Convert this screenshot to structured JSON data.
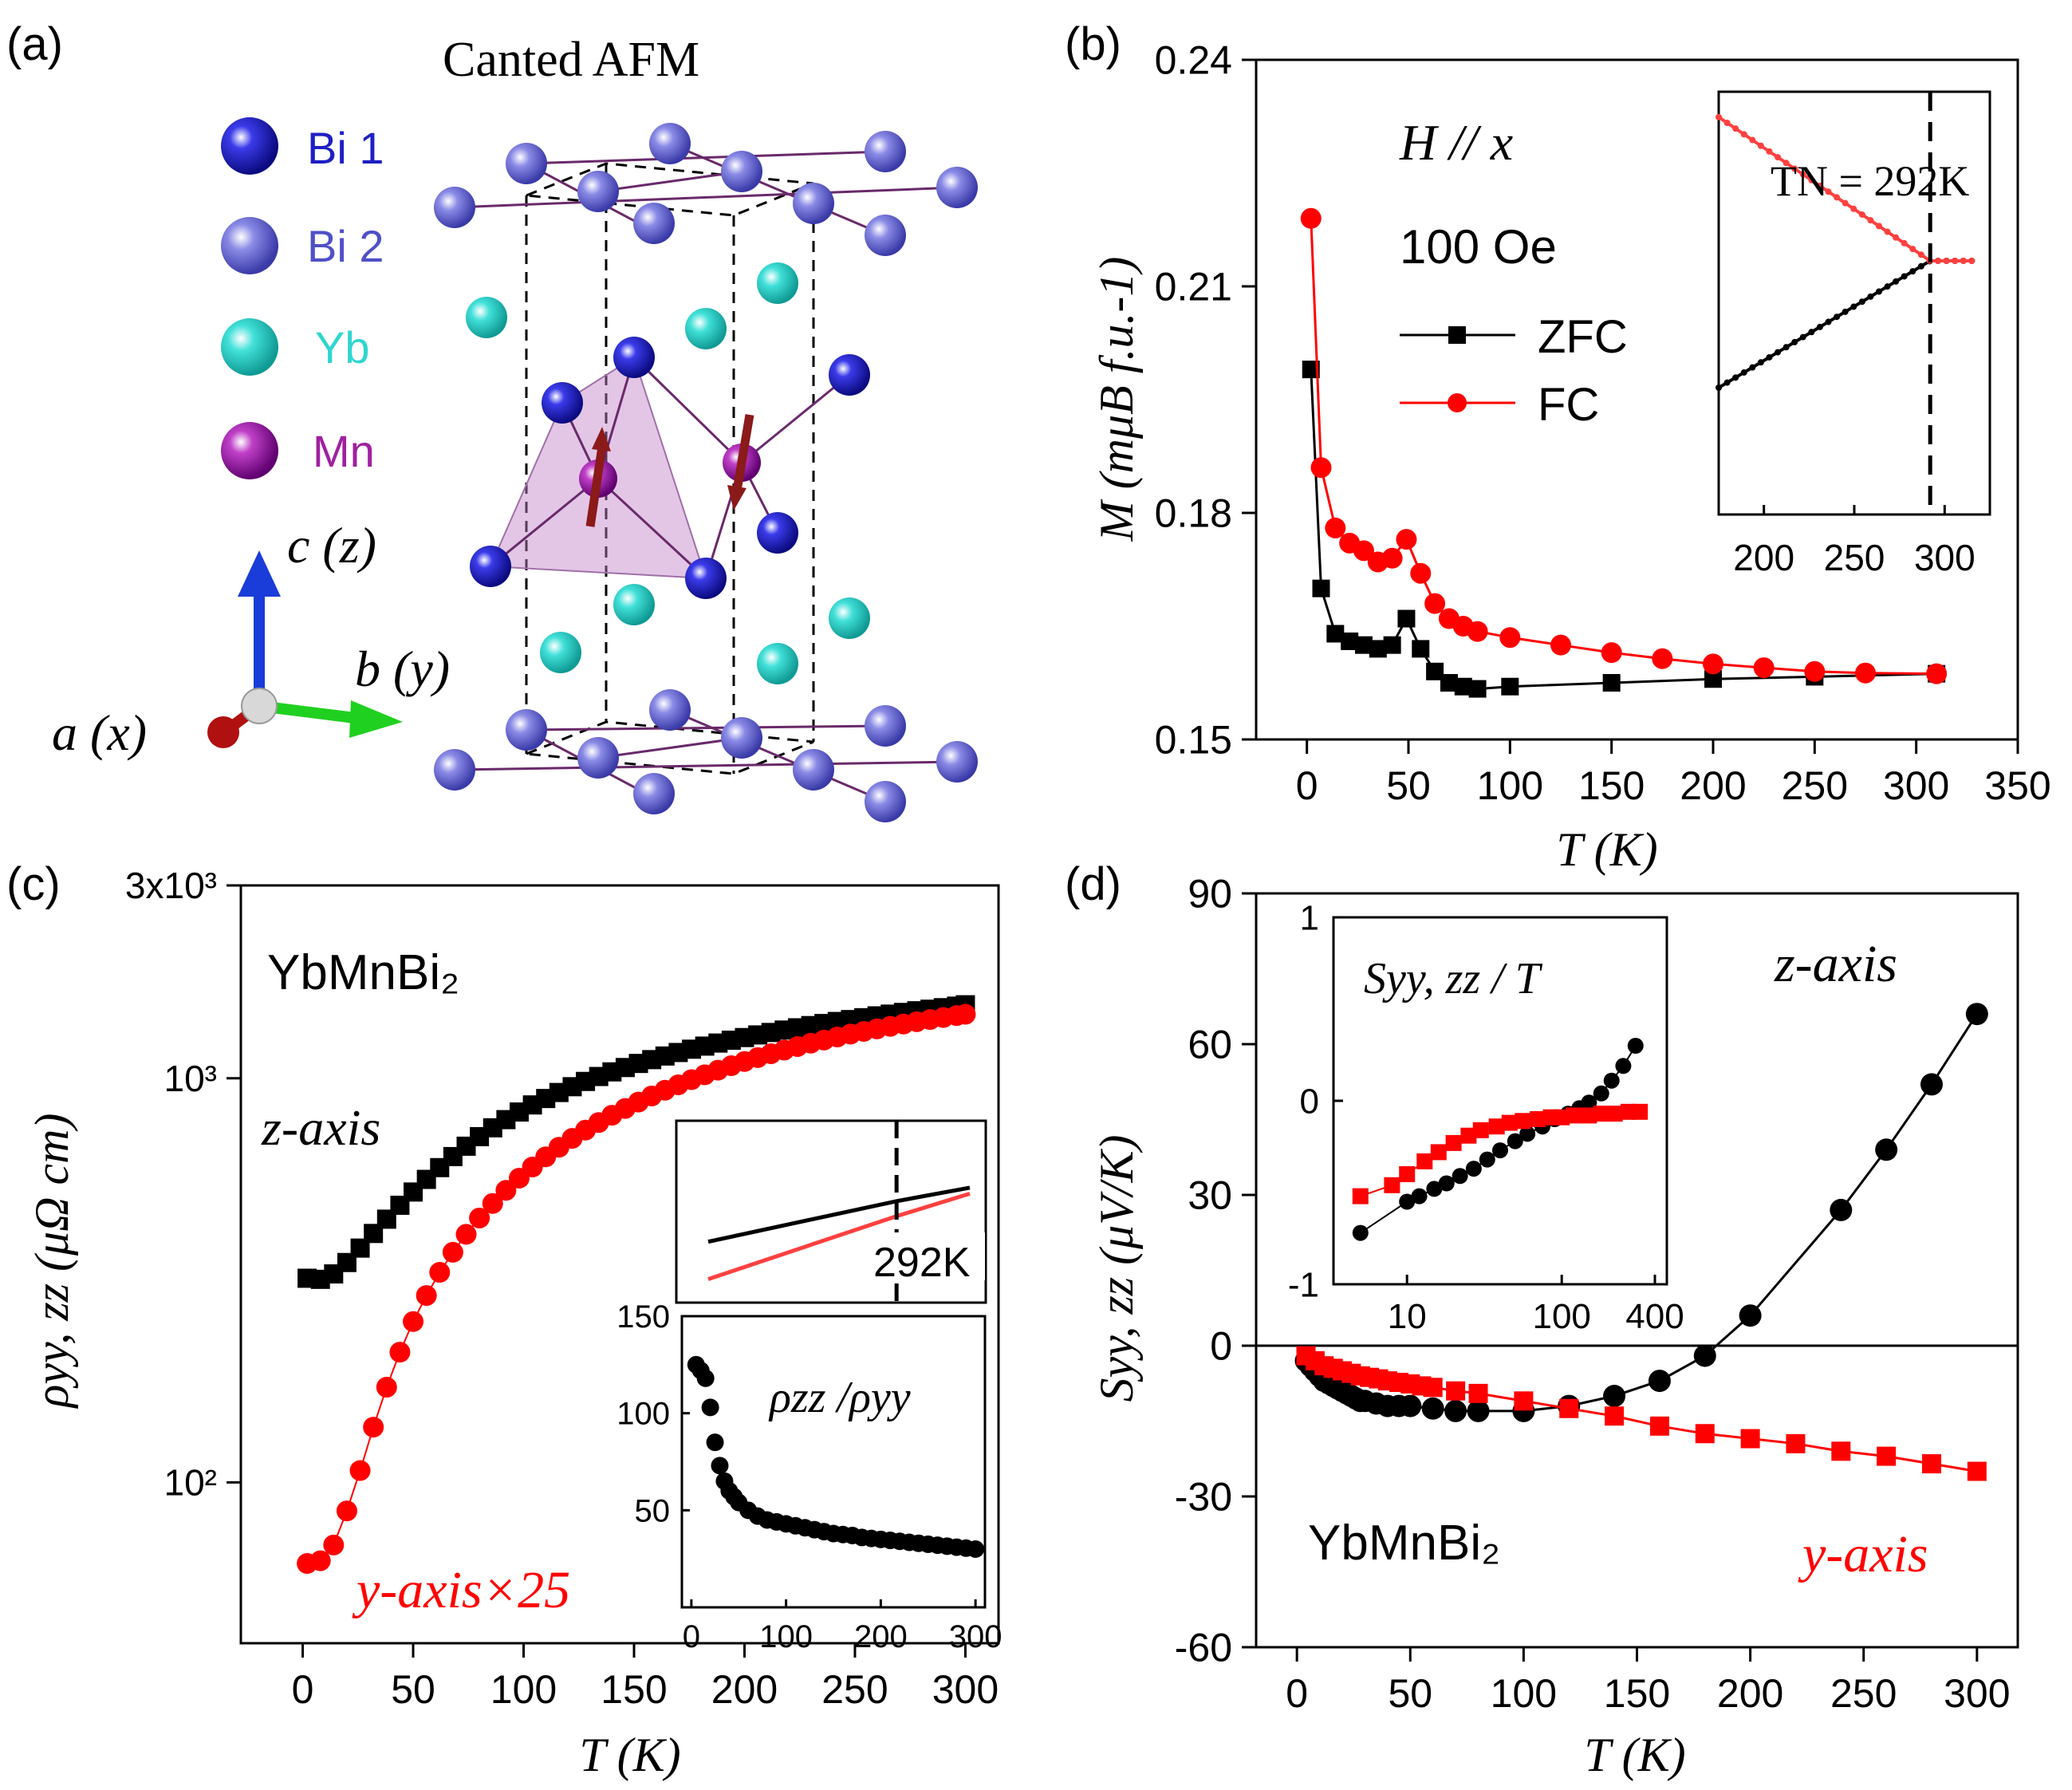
{
  "figure": {
    "panels": {
      "a": {
        "label": "(a)",
        "title": "Canted AFM",
        "legend": [
          {
            "name": "Bi 1",
            "color": "#1f1fc4"
          },
          {
            "name": "Bi 2",
            "color": "#6f6fd8"
          },
          {
            "name": "Yb",
            "color": "#2fd6cf"
          },
          {
            "name": "Mn",
            "color": "#a020a0"
          }
        ],
        "axes": {
          "c": "c (z)",
          "b": "b (y)",
          "a": "a (x)"
        }
      }
    }
  },
  "colors": {
    "black": "#000000",
    "red": "#ff0000",
    "inset_red": "#ff4040"
  },
  "chart_data": [
    {
      "id": "b",
      "type": "line",
      "label": "(b)",
      "title": "",
      "xlabel": "T (K)",
      "ylabel": "M (mμB f.u.-1)",
      "xlim": [
        -25,
        350
      ],
      "ylim": [
        0.15,
        0.24
      ],
      "xticks": [
        0,
        50,
        100,
        150,
        200,
        250,
        300,
        350
      ],
      "yticks": [
        0.15,
        0.18,
        0.21,
        0.24
      ],
      "ytick_labels": [
        "0.15",
        "0.18",
        "0.21",
        "0.24"
      ],
      "annotations": {
        "field_dir": "H // x",
        "field": "100 Oe"
      },
      "series": [
        {
          "name": "ZFC",
          "color": "#000000",
          "marker": "square",
          "x": [
            2,
            7,
            14,
            21,
            28,
            35,
            42,
            49,
            56,
            63,
            70,
            77,
            84,
            100,
            150,
            200,
            250,
            310
          ],
          "y": [
            0.199,
            0.17,
            0.164,
            0.163,
            0.1625,
            0.162,
            0.1625,
            0.166,
            0.162,
            0.159,
            0.1575,
            0.157,
            0.1567,
            0.157,
            0.1575,
            0.158,
            0.1583,
            0.1587
          ]
        },
        {
          "name": "FC",
          "color": "#ff0000",
          "marker": "circle",
          "x": [
            2,
            7,
            14,
            21,
            28,
            35,
            42,
            49,
            56,
            63,
            70,
            77,
            84,
            100,
            125,
            150,
            175,
            200,
            225,
            250,
            275,
            310
          ],
          "y": [
            0.219,
            0.186,
            0.178,
            0.176,
            0.175,
            0.1735,
            0.174,
            0.1765,
            0.172,
            0.168,
            0.166,
            0.165,
            0.1643,
            0.1635,
            0.1625,
            0.1615,
            0.1607,
            0.16,
            0.1595,
            0.159,
            0.1588,
            0.1587
          ]
        }
      ],
      "inset": {
        "xlim": [
          175,
          325
        ],
        "xticks": [
          200,
          250,
          300
        ],
        "annotation": "TN = 292K",
        "TN": 292,
        "series": [
          {
            "name": "ZFC",
            "color": "#000000",
            "x": [
              175,
              292,
              315
            ],
            "y": [
              0.3,
              0.6,
              0.6
            ]
          },
          {
            "name": "FC",
            "color": "#ff4040",
            "x": [
              175,
              292,
              315
            ],
            "y": [
              0.94,
              0.6,
              0.6
            ]
          }
        ]
      }
    },
    {
      "id": "c",
      "type": "scatter",
      "label": "(c)",
      "xlabel": "T (K)",
      "ylabel": "ρyy, zz (μΩ cm)",
      "yscale": "log",
      "xlim": [
        -28,
        315
      ],
      "ylim": [
        40,
        3000
      ],
      "xticks": [
        0,
        50,
        100,
        150,
        200,
        250,
        300
      ],
      "yticks": [
        100,
        1000,
        3000
      ],
      "ytick_labels": [
        "10²",
        "10³",
        "3x10³"
      ],
      "annotations": {
        "compound": "YbMnBi₂",
        "z": "z-axis",
        "y": "y-axis×25"
      },
      "series": [
        {
          "name": "z-axis",
          "color": "#000000",
          "marker": "square",
          "x": [
            2,
            8,
            14,
            20,
            26,
            32,
            38,
            44,
            50,
            56,
            62,
            68,
            74,
            80,
            86,
            92,
            98,
            104,
            110,
            116,
            122,
            128,
            134,
            140,
            146,
            152,
            158,
            164,
            170,
            176,
            182,
            188,
            194,
            200,
            206,
            212,
            218,
            224,
            230,
            236,
            242,
            248,
            254,
            260,
            266,
            272,
            278,
            284,
            290,
            296,
            300
          ],
          "y": [
            320,
            318,
            328,
            350,
            380,
            413,
            448,
            485,
            523,
            562,
            601,
            640,
            679,
            717,
            754,
            790,
            825,
            859,
            891,
            922,
            953,
            982,
            1010,
            1037,
            1063,
            1088,
            1112,
            1135,
            1158,
            1180,
            1201,
            1222,
            1242,
            1261,
            1280,
            1298,
            1316,
            1333,
            1350,
            1366,
            1382,
            1397,
            1412,
            1427,
            1441,
            1455,
            1469,
            1482,
            1495,
            1508,
            1520
          ]
        },
        {
          "name": "y-axis×25",
          "color": "#ff0000",
          "marker": "circle",
          "x": [
            2,
            8,
            14,
            20,
            26,
            32,
            38,
            44,
            50,
            56,
            62,
            68,
            74,
            80,
            86,
            92,
            98,
            104,
            110,
            116,
            122,
            128,
            134,
            140,
            146,
            152,
            158,
            164,
            170,
            176,
            182,
            188,
            194,
            200,
            206,
            212,
            218,
            224,
            230,
            236,
            242,
            248,
            254,
            260,
            266,
            272,
            278,
            284,
            290,
            296,
            300
          ],
          "y": [
            63,
            64,
            70,
            85,
            107,
            137,
            172,
            210,
            250,
            290,
            331,
            371,
            411,
            451,
            490,
            528,
            566,
            603,
            639,
            675,
            710,
            744,
            777,
            810,
            842,
            873,
            904,
            934,
            963,
            992,
            1020,
            1047,
            1074,
            1100,
            1125,
            1150,
            1174,
            1198,
            1221,
            1243,
            1265,
            1286,
            1306,
            1325,
            1344,
            1362,
            1380,
            1397,
            1413,
            1429,
            1440
          ]
        }
      ],
      "inset_top": {
        "annotation": "292K",
        "TN_frac": 0.72,
        "series": [
          {
            "name": "z-axis",
            "color": "#000000",
            "x": [
              0,
              0.72,
              1
            ],
            "y": [
              0.3,
              0.57,
              0.66
            ]
          },
          {
            "name": "y-axis",
            "color": "#ff4040",
            "x": [
              0,
              0.72,
              1
            ],
            "y": [
              0.05,
              0.47,
              0.62
            ]
          }
        ]
      },
      "inset_bottom": {
        "annotation": "ρzz /ρyy",
        "xlim": [
          -10,
          310
        ],
        "ylim": [
          0,
          150
        ],
        "xticks": [
          0,
          100,
          200,
          300
        ],
        "yticks": [
          50,
          100,
          150
        ],
        "series": [
          {
            "name": "ratio",
            "color": "#000000",
            "x": [
              5,
              10,
              15,
              20,
              25,
              30,
              35,
              40,
              45,
              50,
              60,
              70,
              80,
              90,
              100,
              110,
              120,
              130,
              140,
              150,
              160,
              170,
              180,
              190,
              200,
              210,
              220,
              230,
              240,
              250,
              260,
              270,
              280,
              290,
              300
            ],
            "y": [
              125,
              122,
              118,
              103,
              85,
              73,
              65,
              60,
              57,
              54,
              50,
              47,
              45,
              44,
              43,
              42,
              41,
              40,
              39,
              38,
              37.5,
              37,
              36,
              35.5,
              35,
              34.5,
              34,
              33.5,
              33,
              32.5,
              32,
              31.5,
              31,
              30.5,
              30
            ]
          }
        ]
      }
    },
    {
      "id": "d",
      "type": "line",
      "label": "(d)",
      "xlabel": "T (K)",
      "ylabel": "Syy, zz (μV/K)",
      "xlim": [
        -18,
        318
      ],
      "ylim": [
        -60,
        90
      ],
      "xticks": [
        0,
        50,
        100,
        150,
        200,
        250,
        300
      ],
      "yticks": [
        -60,
        -30,
        0,
        30,
        60,
        90
      ],
      "annotations": {
        "compound": "YbMnBi₂",
        "z": "z-axis",
        "y": "y-axis"
      },
      "series": [
        {
          "name": "z-axis",
          "color": "#000000",
          "marker": "circle",
          "x": [
            4,
            6,
            8,
            10,
            12,
            14,
            16,
            18,
            20,
            22,
            24,
            26,
            28,
            30,
            35,
            40,
            45,
            50,
            60,
            70,
            80,
            100,
            120,
            140,
            160,
            180,
            200,
            240,
            260,
            280,
            300
          ],
          "y": [
            -3,
            -4,
            -5,
            -6,
            -7,
            -7.5,
            -8,
            -8.5,
            -9,
            -9.5,
            -10,
            -10.5,
            -11,
            -11,
            -11.5,
            -12,
            -12,
            -12,
            -12.5,
            -13,
            -13,
            -13,
            -12,
            -10,
            -7,
            -2,
            6,
            27,
            39,
            52,
            66
          ]
        },
        {
          "name": "y-axis",
          "color": "#ff0000",
          "marker": "square",
          "x": [
            4,
            8,
            12,
            16,
            20,
            24,
            28,
            32,
            36,
            40,
            45,
            50,
            55,
            60,
            70,
            80,
            100,
            120,
            140,
            160,
            180,
            200,
            220,
            240,
            260,
            280,
            300
          ],
          "y": [
            -2,
            -3,
            -4,
            -4.5,
            -5,
            -5.5,
            -6,
            -6.3,
            -6.6,
            -7,
            -7.3,
            -7.6,
            -8,
            -8.3,
            -9,
            -9.5,
            -11,
            -12.5,
            -14,
            -16,
            -17.5,
            -18.5,
            -19.5,
            -21,
            -22,
            -23.5,
            -25
          ]
        }
      ],
      "inset": {
        "title": "Syy, zz / T",
        "xscale": "log",
        "xlim": [
          4,
          400
        ],
        "ylim": [
          -1,
          1
        ],
        "xticks": [
          10,
          100,
          400
        ],
        "yticks": [
          -1,
          0,
          1
        ],
        "series": [
          {
            "name": "z-axis",
            "color": "#000000",
            "x": [
              5,
              10,
              12,
              15,
              18,
              22,
              27,
              33,
              40,
              50,
              60,
              75,
              90,
              110,
              130,
              150,
              180,
              210,
              250,
              300
            ],
            "y": [
              -0.72,
              -0.55,
              -0.52,
              -0.48,
              -0.45,
              -0.41,
              -0.37,
              -0.32,
              -0.27,
              -0.22,
              -0.18,
              -0.14,
              -0.1,
              -0.07,
              -0.04,
              -0.01,
              0.04,
              0.11,
              0.19,
              0.3
            ]
          },
          {
            "name": "y-axis",
            "color": "#ff0000",
            "x": [
              5,
              8,
              10,
              13,
              16,
              20,
              25,
              30,
              38,
              46,
              56,
              70,
              85,
              100,
              120,
              150,
              180,
              220,
              270,
              320
            ],
            "y": [
              -0.52,
              -0.46,
              -0.4,
              -0.33,
              -0.28,
              -0.23,
              -0.19,
              -0.16,
              -0.14,
              -0.12,
              -0.11,
              -0.1,
              -0.09,
              -0.09,
              -0.08,
              -0.08,
              -0.07,
              -0.07,
              -0.06,
              -0.06
            ]
          }
        ]
      }
    }
  ]
}
